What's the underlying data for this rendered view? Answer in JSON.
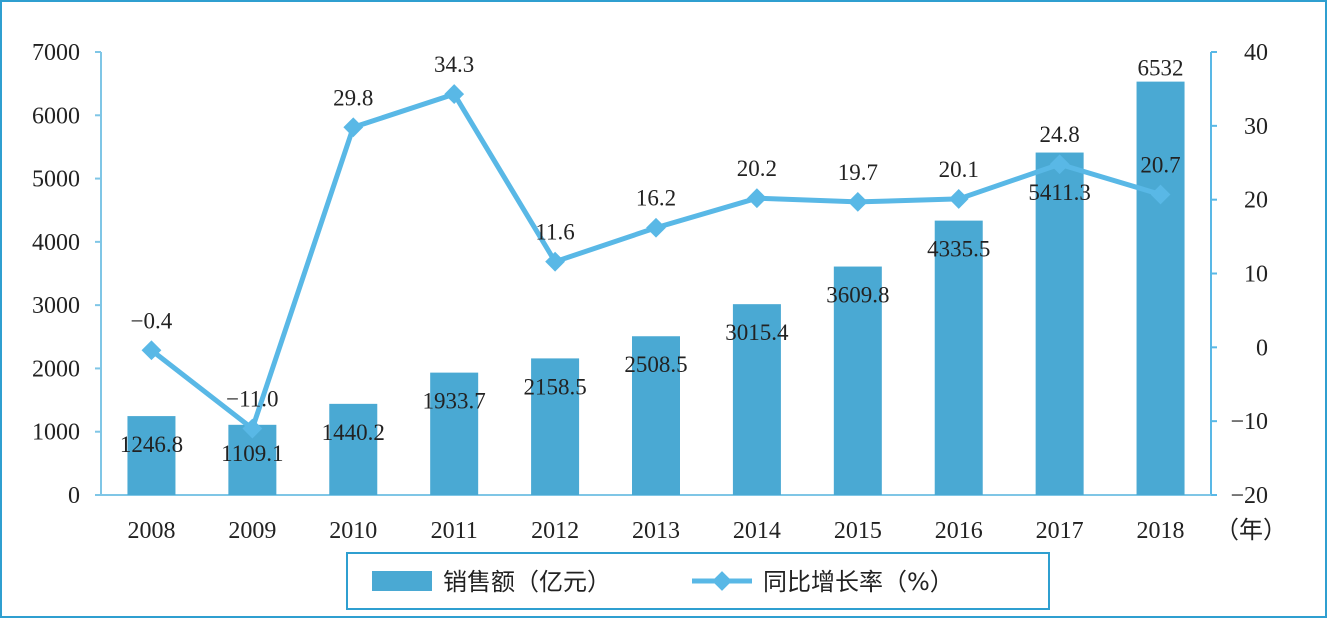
{
  "chart_data": {
    "type": "bar+line",
    "categories": [
      "2008",
      "2009",
      "2010",
      "2011",
      "2012",
      "2013",
      "2014",
      "2015",
      "2016",
      "2017",
      "2018"
    ],
    "x_unit": "（年）",
    "series": [
      {
        "name": "销售额（亿元）",
        "type": "bar",
        "axis": "left",
        "values": [
          1246.8,
          1109.1,
          1440.2,
          1933.7,
          2158.5,
          2508.5,
          3015.4,
          3609.8,
          4335.5,
          5411.3,
          6532
        ],
        "labels": [
          "1246.8",
          "1109.1",
          "1440.2",
          "1933.7",
          "2158.5",
          "2508.5",
          "3015.4",
          "3609.8",
          "4335.5",
          "5411.3",
          "6532"
        ]
      },
      {
        "name": "同比增长率（%）",
        "type": "line",
        "axis": "right",
        "values": [
          -0.4,
          -11.0,
          29.8,
          34.3,
          11.6,
          16.2,
          20.2,
          19.7,
          20.1,
          24.8,
          20.7
        ],
        "labels": [
          "−0.4",
          "−11.0",
          "29.8",
          "34.3",
          "11.6",
          "16.2",
          "20.2",
          "19.7",
          "20.1",
          "24.8",
          "20.7"
        ]
      }
    ],
    "y_left": {
      "min": 0,
      "max": 7000,
      "ticks": [
        "0",
        "1000",
        "2000",
        "3000",
        "4000",
        "5000",
        "6000",
        "7000"
      ]
    },
    "y_right": {
      "min": -20,
      "max": 40,
      "ticks": [
        "−20",
        "−10",
        "0",
        "10",
        "20",
        "30",
        "40"
      ]
    },
    "grid": false,
    "legend_position": "bottom",
    "colors": {
      "bar": "#4aa9d3",
      "line": "#59b8e6",
      "frame": "#2f9fd0",
      "axis": "#7fc6e6"
    }
  }
}
